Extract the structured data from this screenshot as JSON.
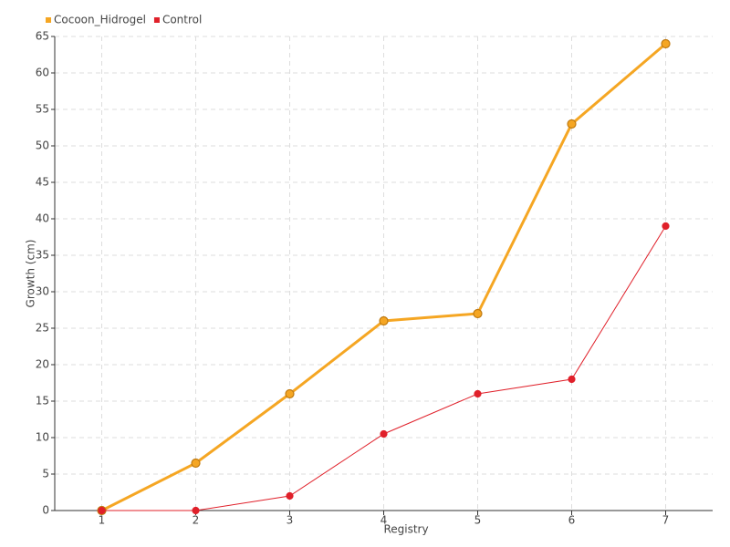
{
  "chart_data": {
    "type": "line",
    "x": [
      1,
      2,
      3,
      4,
      5,
      6,
      7
    ],
    "xlim": [
      0.5,
      7.5
    ],
    "xticks": [
      1,
      2,
      3,
      4,
      5,
      6,
      7
    ],
    "ylim": [
      0,
      65
    ],
    "yticks": [
      0,
      5,
      10,
      15,
      20,
      25,
      30,
      35,
      40,
      45,
      50,
      55,
      60,
      65
    ],
    "xlabel": "Registry",
    "ylabel": "Growth (cm)",
    "grid": true,
    "legend": "top-left",
    "series": [
      {
        "name": "Cocoon_Hidrogel",
        "color": "#f5a623",
        "values": [
          0,
          6.5,
          16,
          26,
          27,
          53,
          64
        ]
      },
      {
        "name": "Control",
        "color": "#e0202a",
        "values": [
          0,
          0,
          2,
          10.5,
          16,
          18,
          39
        ]
      }
    ]
  }
}
